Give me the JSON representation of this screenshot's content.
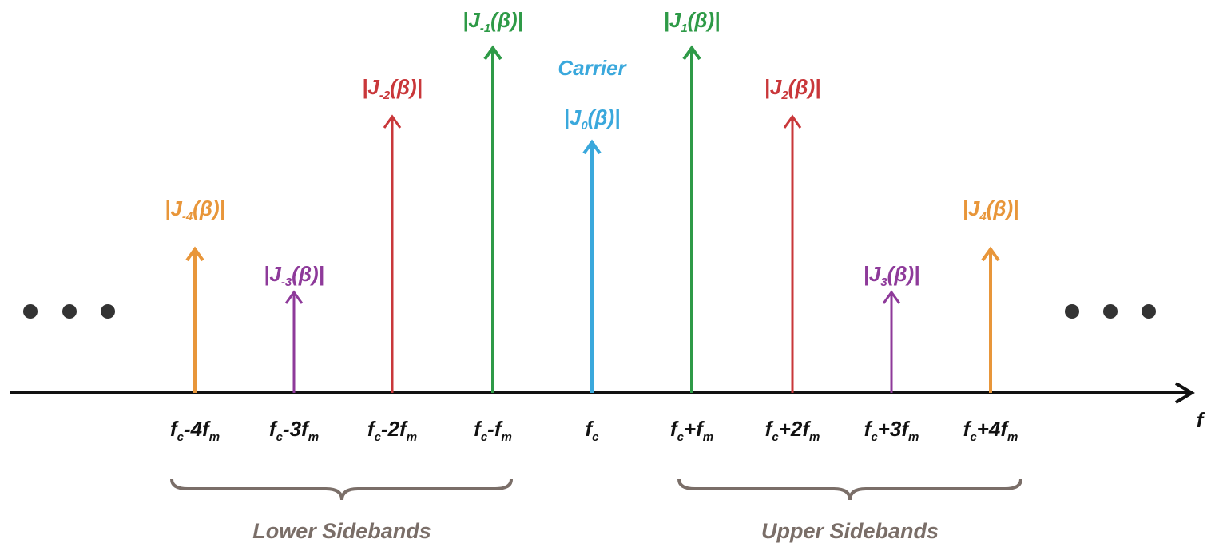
{
  "spectral_lines": [
    {
      "label": [
        "|J",
        "-4",
        "(β)|"
      ],
      "frequency": [
        "f",
        "c",
        "-4f",
        "m"
      ],
      "color": "#e8963a"
    },
    {
      "label": [
        "|J",
        "-3",
        "(β)|"
      ],
      "frequency": [
        "f",
        "c",
        "-3f",
        "m"
      ],
      "color": "#8e3a9a"
    },
    {
      "label": [
        "|J",
        "-2",
        "(β)|"
      ],
      "frequency": [
        "f",
        "c",
        "-2f",
        "m"
      ],
      "color": "#c9373a"
    },
    {
      "label": [
        "|J",
        "-1",
        "(β)|"
      ],
      "frequency": [
        "f",
        "c",
        "-f",
        "m"
      ],
      "color": "#2e9a47"
    },
    {
      "label": [
        "|J",
        "0",
        "(β)|"
      ],
      "frequency": [
        "f",
        "c"
      ],
      "color": "#3aa8dc"
    },
    {
      "label": [
        "|J",
        "1",
        "(β)|"
      ],
      "frequency": [
        "f",
        "c",
        "+f",
        "m"
      ],
      "color": "#2e9a47"
    },
    {
      "label": [
        "|J",
        "2",
        "(β)|"
      ],
      "frequency": [
        "f",
        "c",
        "+2f",
        "m"
      ],
      "color": "#c9373a"
    },
    {
      "label": [
        "|J",
        "3",
        "(β)|"
      ],
      "frequency": [
        "f",
        "c",
        "+3f",
        "m"
      ],
      "color": "#8e3a9a"
    },
    {
      "label": [
        "|J",
        "4",
        "(β)|"
      ],
      "frequency": [
        "f",
        "c",
        "+4f",
        "m"
      ],
      "color": "#e8963a"
    }
  ],
  "carrier_label": "Carrier",
  "axis_label": "f",
  "bands": [
    "Lower Sidebands",
    "Upper Sidebands"
  ]
}
